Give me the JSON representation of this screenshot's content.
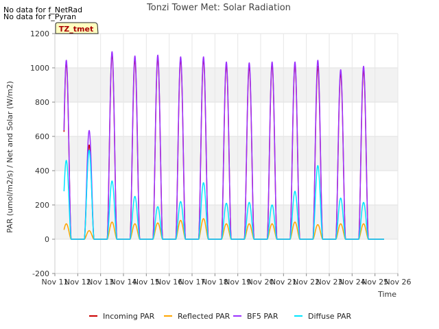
{
  "notes": [
    "No data for f_NetRad",
    "No data for f_Pyran"
  ],
  "badge": "TZ_tmet",
  "chart_data": {
    "type": "line",
    "title": "Tonzi Tower Met: Solar Radiation",
    "xlabel": "Time",
    "ylabel": "PAR (umol/m2/s) / Net and Solar (W/m2)",
    "ylim": [
      -200,
      1200
    ],
    "yticks": [
      -200,
      0,
      200,
      400,
      600,
      800,
      1000,
      1200
    ],
    "xlim": [
      11,
      26
    ],
    "xticks": [
      {
        "v": 11,
        "label": "Nov 11"
      },
      {
        "v": 12,
        "label": "Nov 12"
      },
      {
        "v": 13,
        "label": "Nov 13"
      },
      {
        "v": 14,
        "label": "Nov 14"
      },
      {
        "v": 15,
        "label": "Nov 15"
      },
      {
        "v": 16,
        "label": "Nov 16"
      },
      {
        "v": 17,
        "label": "Nov 17"
      },
      {
        "v": 18,
        "label": "Nov 18"
      },
      {
        "v": 19,
        "label": "Nov 19"
      },
      {
        "v": 20,
        "label": "Nov 20"
      },
      {
        "v": 21,
        "label": "Nov 21"
      },
      {
        "v": 22,
        "label": "Nov 22"
      },
      {
        "v": 23,
        "label": "Nov 23"
      },
      {
        "v": 24,
        "label": "Nov 24"
      },
      {
        "v": 25,
        "label": "Nov 25"
      },
      {
        "v": 26,
        "label": "Nov 26"
      }
    ],
    "day_start": 11.4,
    "day_end": 25.4,
    "daylight_start": 0.29,
    "daylight_end": 0.71,
    "series": [
      {
        "name": "Incoming PAR",
        "color": "#cc0000",
        "peaks": [
          1030,
          550,
          1080,
          1050,
          1060,
          1050,
          1050,
          1020,
          1010,
          1020,
          1020,
          1010,
          970,
          990
        ]
      },
      {
        "name": "Reflected PAR",
        "color": "#ffa500",
        "peaks": [
          90,
          50,
          100,
          90,
          95,
          110,
          120,
          90,
          90,
          90,
          100,
          85,
          90,
          90
        ]
      },
      {
        "name": "BF5 PAR",
        "color": "#9b30ff",
        "peaks": [
          1045,
          635,
          1095,
          1070,
          1075,
          1065,
          1065,
          1035,
          1030,
          1035,
          1035,
          1045,
          990,
          1010
        ]
      },
      {
        "name": "Diffuse PAR",
        "color": "#00e5ff",
        "peaks": [
          460,
          520,
          340,
          250,
          190,
          220,
          330,
          210,
          215,
          200,
          280,
          430,
          240,
          215
        ]
      }
    ]
  }
}
